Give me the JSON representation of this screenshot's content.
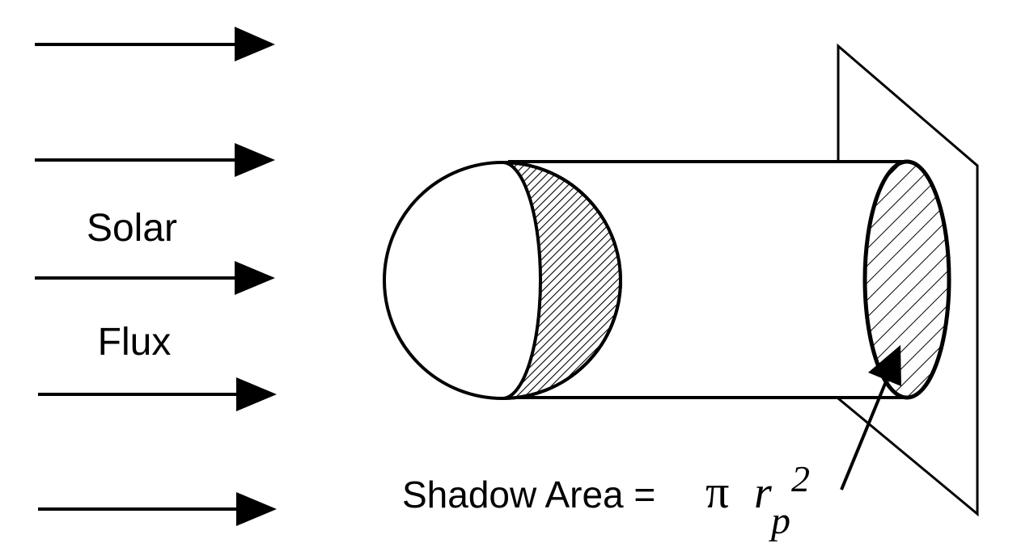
{
  "labels": {
    "solar": "Solar",
    "flux": "Flux"
  },
  "formula": {
    "text": "Shadow Area =",
    "pi": "π",
    "r": "r",
    "subscript": "p",
    "superscript": "2"
  },
  "colors": {
    "ink": "#000000",
    "paper": "#ffffff"
  }
}
